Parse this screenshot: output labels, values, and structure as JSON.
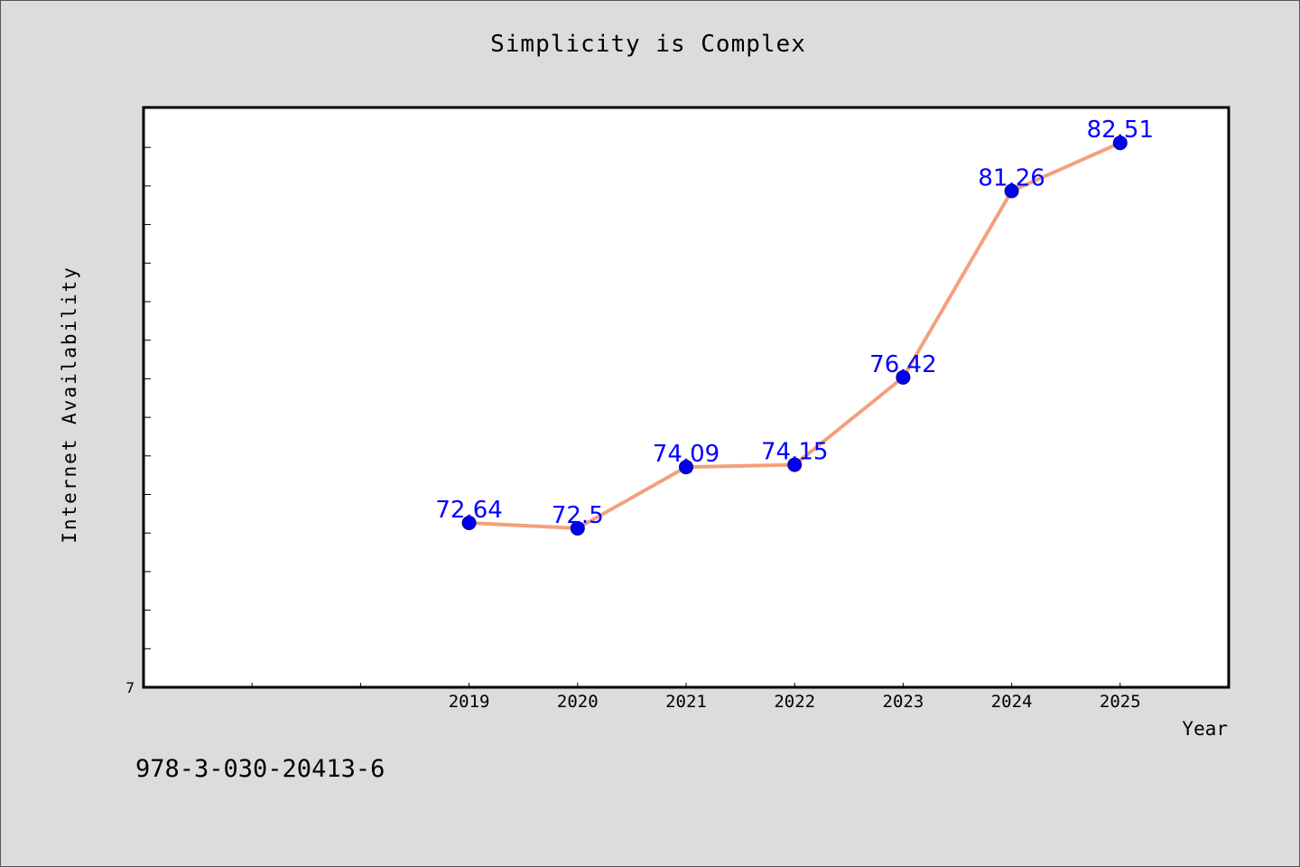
{
  "chart_data": {
    "type": "line",
    "title": "Simplicity is Complex",
    "xlabel": "Year",
    "ylabel": "Internet Availability",
    "x": [
      2019,
      2020,
      2021,
      2022,
      2023,
      2024,
      2025
    ],
    "values": [
      72.64,
      72.5,
      74.09,
      74.15,
      76.42,
      81.26,
      82.51
    ],
    "data_labels": [
      "72.64",
      "72.5",
      "74.09",
      "74.15",
      "76.42",
      "81.26",
      "82.51"
    ],
    "x_tick_labels": [
      "2019",
      "2020",
      "2021",
      "2022",
      "2023",
      "2024",
      "2025"
    ],
    "y_tick_label": "7",
    "xlim": [
      2016,
      2026
    ],
    "ylim": [
      68.37,
      83.43
    ],
    "grid": false,
    "legend": "none",
    "line_color": "#f4a07c",
    "marker_color": "#0000ee",
    "label_color": "#0000ff"
  },
  "footnote": "978-3-030-20413-6"
}
